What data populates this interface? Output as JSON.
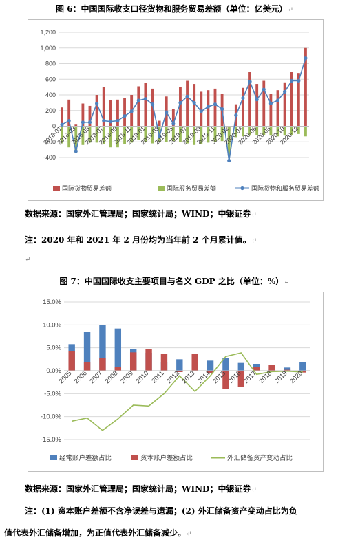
{
  "page": {
    "fig6_title": "图 6：中国国际收支口径货物和服务贸易差额（单位：亿美元）",
    "fig6_source": "数据来源：国家外汇管理局；国家统计局；WIND；中银证券",
    "fig6_note": "注：2020 年和 2021 年 2 月份均为当年前 2 个月累计值。",
    "fig7_title": "图 7：中国国际收支主要项目与名义 GDP 之比（单位：%）",
    "fig7_source": "数据来源：国家外汇管理局；国家统计局；WIND；中银证券",
    "fig7_note_line1": "注：(1) 资本账户差额不含净误差与遗漏；(2) 外汇储备资产变动占比为负",
    "fig7_note_line2": "值代表外汇储备增加，为正值代表外汇储备减少。",
    "para_mark": "↵"
  },
  "colors": {
    "goods": "#c0504d",
    "services": "#9bbb59",
    "total": "#4f81bd",
    "current_account": "#4f81bd",
    "capital_account": "#c0504d",
    "fx_reserve": "#9bbb59"
  },
  "chart_data": [
    {
      "type": "bar",
      "title": "图 6：中国国际收支口径货物和服务贸易差额（单位：亿美元）",
      "ylim": [
        -400,
        1200
      ],
      "yticks": [
        -400,
        -200,
        0,
        200,
        400,
        600,
        800,
        1000,
        1200
      ],
      "ytick_labels": [
        "-400",
        "-200",
        "0",
        "200",
        "400",
        "600",
        "800",
        "1,000",
        "1,200"
      ],
      "categories": [
        "2018-01",
        "2018-02",
        "2018-03",
        "2018-04",
        "2018-05",
        "2018-06",
        "2018-07",
        "2018-08",
        "2018-09",
        "2018-10",
        "2018-11",
        "2018-12",
        "2019-01",
        "2019-02",
        "2019-03",
        "2019-04",
        "2019-05",
        "2019-06",
        "2019-07",
        "2019-08",
        "2019-09",
        "2019-10",
        "2019-11",
        "2019-12",
        "2020-02",
        "2020-03",
        "2020-04",
        "2020-05",
        "2020-06",
        "2020-07",
        "2020-08",
        "2020-09",
        "2020-10",
        "2020-11",
        "2020-12",
        "2021-02"
      ],
      "tick_labels": [
        "2018-01",
        "",
        "2018-03",
        "",
        "2018-05",
        "",
        "2018-07",
        "",
        "2018-09",
        "",
        "2018-11",
        "",
        "2019-01",
        "",
        "2019-03",
        "",
        "2019-05",
        "",
        "2019-07",
        "",
        "2019-09",
        "",
        "2019-11",
        "",
        "2020-02",
        "",
        "2020-04",
        "",
        "2020-06",
        "",
        "2020-08",
        "",
        "2020-10",
        "",
        "2020-12",
        ""
      ],
      "series": [
        {
          "name": "国际货物贸易差额",
          "kind": "bar",
          "values": [
            240,
            340,
            20,
            290,
            260,
            400,
            500,
            330,
            340,
            360,
            400,
            510,
            550,
            480,
            70,
            380,
            220,
            500,
            580,
            540,
            440,
            460,
            480,
            410,
            -60,
            280,
            490,
            690,
            540,
            580,
            410,
            460,
            560,
            690,
            680,
            1000
          ]
        },
        {
          "name": "国际服务贸易差额",
          "kind": "bar",
          "values": [
            -220,
            -270,
            -340,
            -240,
            -210,
            -210,
            -230,
            -270,
            -270,
            -230,
            -210,
            -180,
            -200,
            -220,
            -200,
            -200,
            -190,
            -200,
            -220,
            -240,
            -230,
            -210,
            -200,
            -190,
            -380,
            -140,
            -130,
            -120,
            -110,
            -110,
            -120,
            -130,
            -120,
            -110,
            -100,
            -130
          ]
        },
        {
          "name": "国际货物和服务贸易差额",
          "kind": "line",
          "values": [
            20,
            70,
            -320,
            50,
            50,
            290,
            70,
            60,
            70,
            130,
            190,
            330,
            350,
            280,
            -130,
            180,
            30,
            300,
            380,
            300,
            190,
            250,
            280,
            220,
            -440,
            140,
            360,
            570,
            340,
            470,
            290,
            330,
            440,
            580,
            580,
            870
          ]
        }
      ]
    },
    {
      "type": "bar",
      "title": "图 7：中国国际收支主要项目与名义 GDP 之比（单位：%）",
      "ylim": [
        -15,
        15
      ],
      "yticks": [
        -15,
        -10,
        -5,
        0,
        5,
        10,
        15
      ],
      "ytick_labels": [
        "-15.0%",
        "-10.0%",
        "-5.0%",
        "0.0%",
        "5.0%",
        "10.0%",
        "15.0%"
      ],
      "categories": [
        "2005",
        "2006",
        "2007",
        "2008",
        "2009",
        "2010",
        "2011",
        "2012",
        "2013",
        "2014",
        "2015",
        "2016",
        "2017",
        "2018",
        "2019",
        "2020"
      ],
      "series": [
        {
          "name": "经常账户差额占比",
          "kind": "bar",
          "values": [
            5.8,
            8.4,
            9.9,
            9.2,
            4.8,
            3.9,
            1.8,
            2.5,
            1.5,
            2.2,
            2.7,
            1.7,
            1.5,
            0.2,
            0.7,
            1.9
          ]
        },
        {
          "name": "资本账户差额占比",
          "kind": "bar",
          "values": [
            4.3,
            1.8,
            2.7,
            0.9,
            4.0,
            4.7,
            3.6,
            -0.3,
            3.7,
            -0.5,
            -4.0,
            -3.5,
            0.8,
            1.2,
            0.2,
            -0.4
          ]
        },
        {
          "name": "外汇储备资产变动占比",
          "kind": "line",
          "values": [
            -11.0,
            -10.3,
            -13.0,
            -10.5,
            -7.5,
            -7.7,
            -5.0,
            -1.1,
            -4.5,
            -1.1,
            3.1,
            3.9,
            -0.8,
            -0.2,
            -0.1,
            -0.3
          ]
        }
      ]
    }
  ]
}
